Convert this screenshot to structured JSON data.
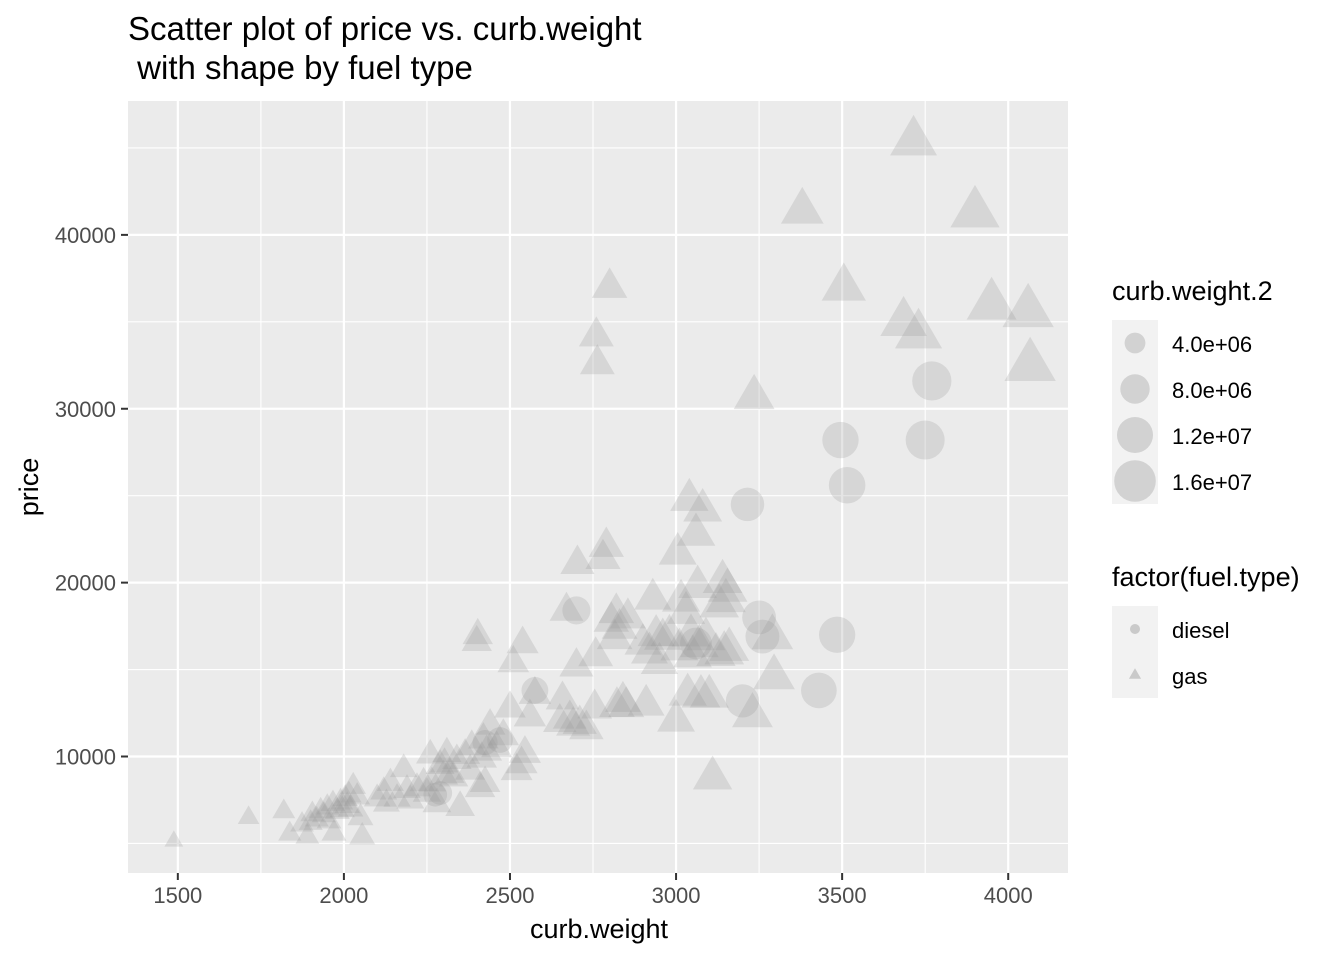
{
  "chart_data": {
    "type": "scatter",
    "title": "Scatter plot of price vs. curb.weight",
    "subtitle": " with shape by fuel type",
    "xlabel": "curb.weight",
    "ylabel": "price",
    "xlim": [
      1350,
      4180
    ],
    "ylim": [
      3300,
      47700
    ],
    "x_ticks": [
      1500,
      2000,
      2500,
      3000,
      3500,
      4000
    ],
    "y_ticks": [
      10000,
      20000,
      30000,
      40000
    ],
    "x_tick_labels": [
      "1500",
      "2000",
      "2500",
      "3000",
      "3500",
      "4000"
    ],
    "y_tick_labels": [
      "10000",
      "20000",
      "30000",
      "40000"
    ],
    "grid": true,
    "legend_position": "right",
    "point_color": "#999999",
    "point_alpha": 0.25,
    "size_variable": "curb.weight.2",
    "legends": [
      {
        "title": "curb.weight.2",
        "kind": "size",
        "entries": [
          {
            "label": "4.0e+06",
            "value": 4000000
          },
          {
            "label": "8.0e+06",
            "value": 8000000
          },
          {
            "label": "1.2e+07",
            "value": 12000000
          },
          {
            "label": "1.6e+07",
            "value": 16000000
          }
        ]
      },
      {
        "title": "factor(fuel.type)",
        "kind": "shape",
        "entries": [
          {
            "label": "diesel",
            "shape": "circle"
          },
          {
            "label": "gas",
            "shape": "triangle"
          }
        ]
      }
    ],
    "series": [
      {
        "name": "diesel",
        "shape": "circle",
        "points": [
          [
            2275,
            7800
          ],
          [
            2290,
            7900
          ],
          [
            2425,
            10800
          ],
          [
            2470,
            10950
          ],
          [
            2575,
            13800
          ],
          [
            2700,
            18400
          ],
          [
            3060,
            16500
          ],
          [
            3200,
            13200
          ],
          [
            3215,
            24500
          ],
          [
            3250,
            18000
          ],
          [
            3260,
            16900
          ],
          [
            3430,
            13800
          ],
          [
            3485,
            17000
          ],
          [
            3495,
            28200
          ],
          [
            3515,
            25600
          ],
          [
            3750,
            28200
          ],
          [
            3770,
            31600
          ]
        ]
      },
      {
        "name": "gas",
        "shape": "triangle",
        "points": [
          [
            1488,
            5150
          ],
          [
            1713,
            6500
          ],
          [
            1819,
            6850
          ],
          [
            1837,
            5570
          ],
          [
            1874,
            6100
          ],
          [
            1890,
            5400
          ],
          [
            1900,
            6200
          ],
          [
            1905,
            6700
          ],
          [
            1918,
            6400
          ],
          [
            1930,
            6900
          ],
          [
            1940,
            6650
          ],
          [
            1950,
            7100
          ],
          [
            1955,
            6300
          ],
          [
            1967,
            7300
          ],
          [
            1970,
            5600
          ],
          [
            1980,
            6850
          ],
          [
            1990,
            7400
          ],
          [
            1995,
            6950
          ],
          [
            2004,
            7600
          ],
          [
            2010,
            7200
          ],
          [
            2015,
            7800
          ],
          [
            2020,
            7000
          ],
          [
            2028,
            8300
          ],
          [
            2040,
            7700
          ],
          [
            2050,
            6500
          ],
          [
            2055,
            5400
          ],
          [
            2100,
            7600
          ],
          [
            2120,
            8000
          ],
          [
            2128,
            7300
          ],
          [
            2140,
            8500
          ],
          [
            2160,
            7600
          ],
          [
            2180,
            9300
          ],
          [
            2190,
            8100
          ],
          [
            2200,
            7500
          ],
          [
            2220,
            8200
          ],
          [
            2240,
            8500
          ],
          [
            2250,
            7900
          ],
          [
            2260,
            10100
          ],
          [
            2265,
            8500
          ],
          [
            2280,
            7300
          ],
          [
            2290,
            9500
          ],
          [
            2300,
            8900
          ],
          [
            2303,
            9600
          ],
          [
            2310,
            10200
          ],
          [
            2319,
            9000
          ],
          [
            2330,
            8800
          ],
          [
            2340,
            9800
          ],
          [
            2350,
            7100
          ],
          [
            2365,
            10100
          ],
          [
            2380,
            9200
          ],
          [
            2385,
            10600
          ],
          [
            2400,
            16600
          ],
          [
            2403,
            17000
          ],
          [
            2410,
            8200
          ],
          [
            2415,
            9900
          ],
          [
            2420,
            11000
          ],
          [
            2425,
            8500
          ],
          [
            2430,
            10300
          ],
          [
            2440,
            11800
          ],
          [
            2460,
            10500
          ],
          [
            2480,
            11200
          ],
          [
            2500,
            12800
          ],
          [
            2510,
            15400
          ],
          [
            2520,
            9200
          ],
          [
            2535,
            9600
          ],
          [
            2538,
            16500
          ],
          [
            2545,
            10200
          ],
          [
            2560,
            12300
          ],
          [
            2575,
            13600
          ],
          [
            2650,
            12000
          ],
          [
            2658,
            13300
          ],
          [
            2670,
            18400
          ],
          [
            2680,
            12200
          ],
          [
            2690,
            11800
          ],
          [
            2700,
            15200
          ],
          [
            2703,
            21100
          ],
          [
            2710,
            11900
          ],
          [
            2730,
            11600
          ],
          [
            2755,
            12800
          ],
          [
            2758,
            15800
          ],
          [
            2760,
            34200
          ],
          [
            2763,
            32600
          ],
          [
            2780,
            21400
          ],
          [
            2790,
            22100
          ],
          [
            2800,
            37000
          ],
          [
            2805,
            17800
          ],
          [
            2815,
            16800
          ],
          [
            2820,
            18300
          ],
          [
            2822,
            12900
          ],
          [
            2830,
            17400
          ],
          [
            2840,
            13200
          ],
          [
            2850,
            12900
          ],
          [
            2855,
            18000
          ],
          [
            2900,
            16500
          ],
          [
            2910,
            13000
          ],
          [
            2920,
            16000
          ],
          [
            2930,
            19100
          ],
          [
            2940,
            17000
          ],
          [
            2950,
            15400
          ],
          [
            2960,
            16800
          ],
          [
            2980,
            17000
          ],
          [
            3000,
            12100
          ],
          [
            3005,
            21700
          ],
          [
            3010,
            16200
          ],
          [
            3015,
            19000
          ],
          [
            3030,
            18300
          ],
          [
            3035,
            13600
          ],
          [
            3040,
            24800
          ],
          [
            3045,
            17000
          ],
          [
            3050,
            15800
          ],
          [
            3060,
            22800
          ],
          [
            3065,
            19800
          ],
          [
            3070,
            16400
          ],
          [
            3075,
            13500
          ],
          [
            3080,
            24200
          ],
          [
            3090,
            16800
          ],
          [
            3100,
            13500
          ],
          [
            3110,
            8800
          ],
          [
            3120,
            15900
          ],
          [
            3130,
            18700
          ],
          [
            3140,
            20100
          ],
          [
            3145,
            16000
          ],
          [
            3150,
            19000
          ],
          [
            3155,
            19600
          ],
          [
            3160,
            16200
          ],
          [
            3230,
            12400
          ],
          [
            3235,
            30700
          ],
          [
            3290,
            16900
          ],
          [
            3295,
            14600
          ],
          [
            3380,
            41400
          ],
          [
            3505,
            37000
          ],
          [
            3685,
            35000
          ],
          [
            3715,
            45400
          ],
          [
            3730,
            34300
          ],
          [
            3900,
            41300
          ],
          [
            3950,
            36000
          ],
          [
            4060,
            35600
          ],
          [
            4066,
            32500
          ]
        ]
      }
    ]
  }
}
